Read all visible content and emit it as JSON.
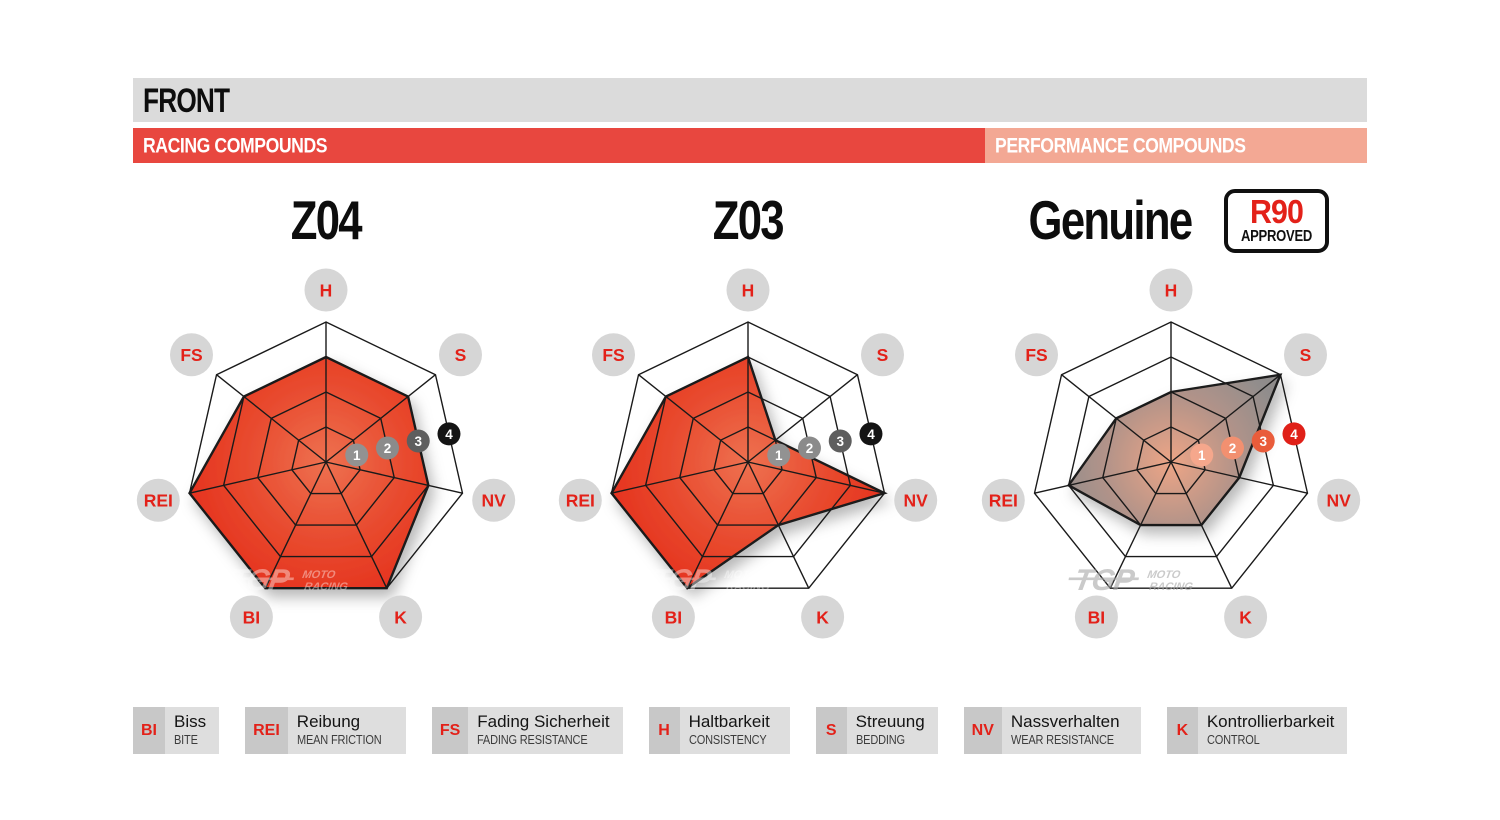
{
  "header": {
    "title": "FRONT"
  },
  "compound_bars": {
    "racing": {
      "label": "RACING COMPOUNDS",
      "color": "#E8473F"
    },
    "performance": {
      "label": "PERFORMANCE COMPOUNDS",
      "color": "#F3A894"
    }
  },
  "badge": {
    "line1": "R90",
    "line2": "APPROVED",
    "accent_color": "#E32119"
  },
  "watermark": {
    "logo": "TGP",
    "sub1": "MOTO",
    "sub2": "RACING"
  },
  "chart_data": [
    {
      "type": "radar",
      "title": "Z04",
      "group": "RACING COMPOUNDS",
      "categories": [
        "H",
        "S",
        "NV",
        "K",
        "BI",
        "REI",
        "FS"
      ],
      "values": [
        3,
        3,
        3,
        4,
        4,
        4,
        3
      ],
      "rmax": 4,
      "scale_ticks": [
        1,
        2,
        3,
        4
      ],
      "grid": "heptagon web, 4 rings, spokes from center",
      "axis_label_color": "#E32119",
      "axis_circle_color": "#D6D6D6",
      "marker_colors": [
        "#929292",
        "#8B8B8B",
        "#5E5E5E",
        "#141414"
      ],
      "fill_stops": [
        [
          "0%",
          "#EE7150"
        ],
        [
          "55%",
          "#E84A2E"
        ],
        [
          "100%",
          "#E5301D"
        ]
      ],
      "watermark_color": "#FFFFFF",
      "watermark_opacity": 0.4
    },
    {
      "type": "radar",
      "title": "Z03",
      "group": "RACING COMPOUNDS",
      "categories": [
        "H",
        "S",
        "NV",
        "K",
        "BI",
        "REI",
        "FS"
      ],
      "values": [
        3,
        1,
        4,
        2,
        4,
        4,
        3
      ],
      "rmax": 4,
      "scale_ticks": [
        1,
        2,
        3,
        4
      ],
      "grid": "heptagon web, 4 rings, spokes from center",
      "axis_label_color": "#E32119",
      "axis_circle_color": "#D6D6D6",
      "marker_colors": [
        "#929292",
        "#8B8B8B",
        "#5E5E5E",
        "#141414"
      ],
      "fill_stops": [
        [
          "0%",
          "#EE7150"
        ],
        [
          "55%",
          "#E84A2E"
        ],
        [
          "100%",
          "#E5301D"
        ]
      ],
      "watermark_color": "#FFFFFF",
      "watermark_opacity": 0.4
    },
    {
      "type": "radar",
      "title": "Genuine",
      "badge": "R90 APPROVED",
      "group": "PERFORMANCE COMPOUNDS",
      "categories": [
        "H",
        "S",
        "NV",
        "K",
        "BI",
        "REI",
        "FS"
      ],
      "values": [
        2,
        4,
        2,
        2,
        2,
        3,
        2
      ],
      "rmax": 4,
      "scale_ticks": [
        1,
        2,
        3,
        4
      ],
      "grid": "heptagon web, 4 rings, spokes from center",
      "axis_label_color": "#E32119",
      "axis_circle_color": "#D6D6D6",
      "marker_colors": [
        "#F5A78C",
        "#F29070",
        "#E95C3B",
        "#E02018"
      ],
      "fill_stops": [
        [
          "0%",
          "#EDA586"
        ],
        [
          "45%",
          "#B29389"
        ],
        [
          "80%",
          "#918D8C"
        ],
        [
          "100%",
          "#8A8888"
        ]
      ],
      "watermark_color": "#A8A8A8",
      "watermark_opacity": 0.6
    }
  ],
  "legend": {
    "items": [
      {
        "abbr": "BI",
        "term": "Biss",
        "translation": "BITE"
      },
      {
        "abbr": "REI",
        "term": "Reibung",
        "translation": "MEAN FRICTION"
      },
      {
        "abbr": "FS",
        "term": "Fading Sicherheit",
        "translation": "FADING RESISTANCE"
      },
      {
        "abbr": "H",
        "term": "Haltbarkeit",
        "translation": "CONSISTENCY"
      },
      {
        "abbr": "S",
        "term": "Streuung",
        "translation": "BEDDING"
      },
      {
        "abbr": "NV",
        "term": "Nassverhalten",
        "translation": "WEAR RESISTANCE"
      },
      {
        "abbr": "K",
        "term": "Kontrollierbarkeit",
        "translation": "CONTROL"
      }
    ]
  }
}
